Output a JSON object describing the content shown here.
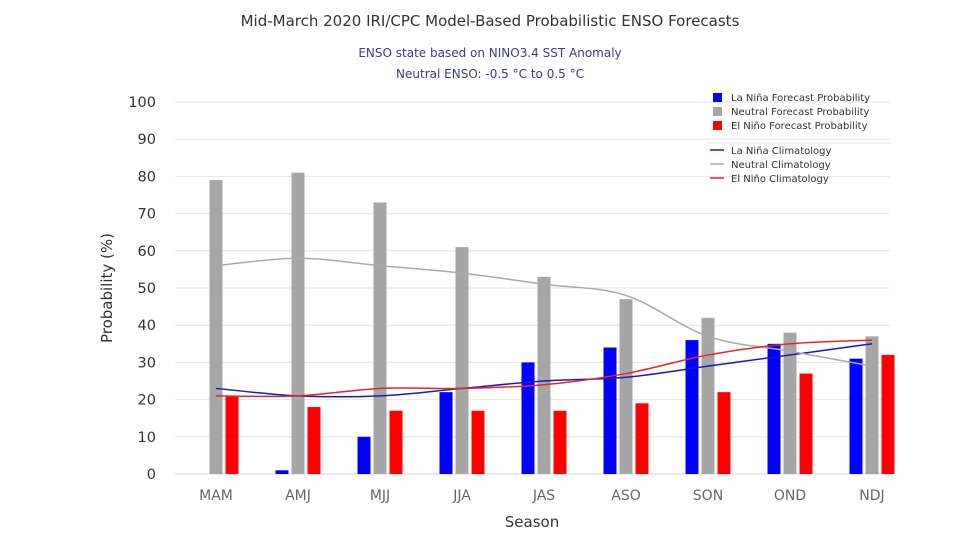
{
  "chart_data": {
    "type": "bar",
    "title": "Mid-March 2020 IRI/CPC Model-Based Probabilistic ENSO Forecasts",
    "subtitles": [
      "ENSO state based on NINO3.4 SST Anomaly",
      "Neutral ENSO: -0.5 °C to 0.5 °C"
    ],
    "xlabel": "Season",
    "ylabel": "Probability (%)",
    "ylim": [
      0,
      100
    ],
    "yticks": [
      0,
      10,
      20,
      30,
      40,
      50,
      60,
      70,
      80,
      90,
      100
    ],
    "grid": true,
    "legend_position": "top-right",
    "categories": [
      "MAM",
      "AMJ",
      "MJJ",
      "JJA",
      "JAS",
      "ASO",
      "SON",
      "OND",
      "NDJ"
    ],
    "series": [
      {
        "name": "La Niña Forecast Probability",
        "kind": "bar",
        "color": "#0000ff",
        "values": [
          0,
          1,
          10,
          22,
          30,
          34,
          36,
          35,
          31
        ]
      },
      {
        "name": "Neutral Forecast Probability",
        "kind": "bar",
        "color": "#a6a6a6",
        "values": [
          79,
          81,
          73,
          61,
          53,
          47,
          42,
          38,
          37
        ]
      },
      {
        "name": "El Niño Forecast Probability",
        "kind": "bar",
        "color": "#ff0000",
        "values": [
          21,
          18,
          17,
          17,
          17,
          19,
          22,
          27,
          32
        ]
      },
      {
        "name": "La Niña Climatology",
        "kind": "line",
        "color": "#1a1ab8",
        "values": [
          23,
          21,
          21,
          23,
          25,
          26,
          29,
          32,
          35
        ]
      },
      {
        "name": "Neutral Climatology",
        "kind": "line",
        "color": "#aaaaaa",
        "values": [
          56,
          58,
          56,
          54,
          51,
          48,
          37,
          33,
          29
        ]
      },
      {
        "name": "El Niño Climatology",
        "kind": "line",
        "color": "#e0262b",
        "values": [
          21,
          21,
          23,
          23,
          24,
          27,
          32,
          35,
          36
        ]
      }
    ]
  }
}
